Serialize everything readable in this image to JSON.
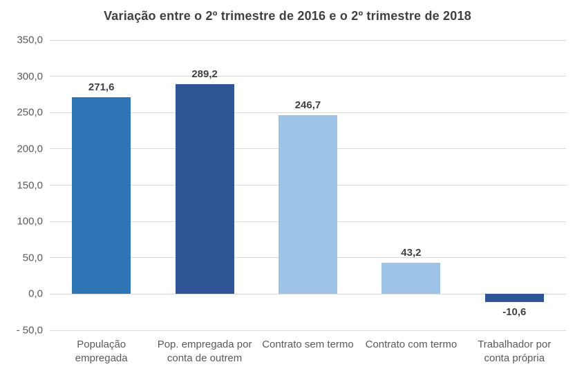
{
  "chart_data": {
    "type": "bar",
    "title": "Variação entre o 2º trimestre de 2016 e o 2º trimestre de 2018",
    "categories": [
      "População empregada",
      "Pop. empregada por conta de outrem",
      "Contrato sem termo",
      "Contrato com termo",
      "Trabalhador por conta própria"
    ],
    "values": [
      271.6,
      289.2,
      246.7,
      43.2,
      -10.6
    ],
    "value_labels": [
      "271,6",
      "289,2",
      "246,7",
      "43,2",
      "-10,6"
    ],
    "bar_colors": [
      "#2E75B6",
      "#2F5597",
      "#9DC3E6",
      "#9DC3E6",
      "#2F5597"
    ],
    "y_ticks": [
      350,
      300,
      250,
      200,
      150,
      100,
      50,
      0,
      -50
    ],
    "y_tick_labels": [
      "350,0",
      "300,0",
      "250,0",
      "200,0",
      "150,0",
      "100,0",
      "50,0",
      "0,0",
      "- 50,0"
    ],
    "ylim": [
      -50,
      350
    ],
    "xlabel": "",
    "ylabel": "",
    "grid": true,
    "legend": false,
    "legend_position": "none"
  },
  "colors": {
    "gridline": "#D9D9D9",
    "title_text": "#404040",
    "data_label_text": "#404040",
    "axis_label_text": "#595959",
    "background": "#FFFFFF"
  }
}
